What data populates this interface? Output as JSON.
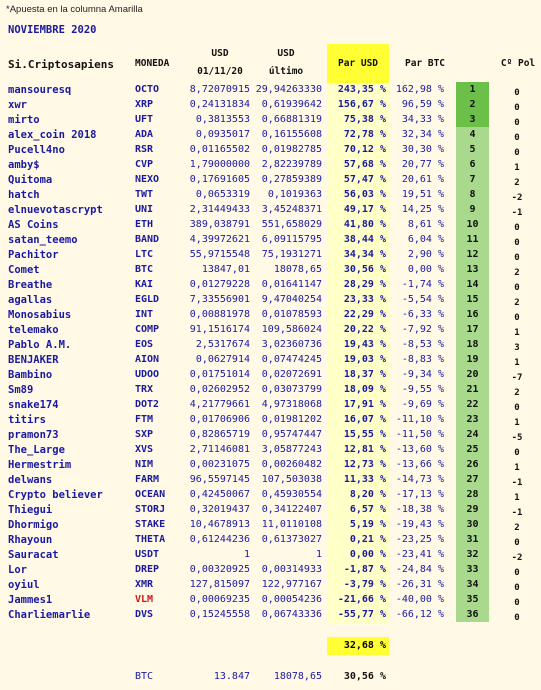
{
  "note": "*Apuesta en la columna Amarilla",
  "date": "NOVIEMBRE 2020",
  "headers": {
    "name": "Si.Criptosapiens",
    "coin": "MONEDA",
    "usd1_top": "USD",
    "usd1_bottom": "01/11/20",
    "usd2_top": "USD",
    "usd2_bottom": "último",
    "par_usd": "Par USD",
    "par_btc": "Par BTC",
    "pol": "Cº Pol"
  },
  "rows": [
    {
      "name": "mansouresq",
      "coin": "OCTO",
      "usd1": "8,72070915",
      "usd2": "29,94263330",
      "par": "243,35 %",
      "btc": "162,98 %",
      "rank": "1",
      "pol": "0"
    },
    {
      "name": "xwr",
      "coin": "XRP",
      "usd1": "0,24131834",
      "usd2": "0,61939642",
      "par": "156,67 %",
      "btc": "96,59 %",
      "rank": "2",
      "pol": "0"
    },
    {
      "name": "mirto",
      "coin": "UFT",
      "usd1": "0,3813553",
      "usd2": "0,66881319",
      "par": "75,38 %",
      "btc": "34,33 %",
      "rank": "3",
      "pol": "0"
    },
    {
      "name": "alex_coin 2018",
      "coin": "ADA",
      "usd1": "0,0935017",
      "usd2": "0,16155608",
      "par": "72,78 %",
      "btc": "32,34 %",
      "rank": "4",
      "pol": "0"
    },
    {
      "name": "Pucell4no",
      "coin": "RSR",
      "usd1": "0,01165502",
      "usd2": "0,01982785",
      "par": "70,12 %",
      "btc": "30,30 %",
      "rank": "5",
      "pol": "0"
    },
    {
      "name": "amby$",
      "coin": "CVP",
      "usd1": "1,79000000",
      "usd2": "2,82239789",
      "par": "57,68 %",
      "btc": "20,77 %",
      "rank": "6",
      "pol": "1"
    },
    {
      "name": "Quitoma",
      "coin": "NEXO",
      "usd1": "0,17691605",
      "usd2": "0,27859389",
      "par": "57,47 %",
      "btc": "20,61 %",
      "rank": "7",
      "pol": "2"
    },
    {
      "name": "hatch",
      "coin": "TWT",
      "usd1": "0,0653319",
      "usd2": "0,1019363",
      "par": "56,03 %",
      "btc": "19,51 %",
      "rank": "8",
      "pol": "-2"
    },
    {
      "name": "elnuevotascrypt",
      "coin": "UNI",
      "usd1": "2,31449433",
      "usd2": "3,45248371",
      "par": "49,17 %",
      "btc": "14,25 %",
      "rank": "9",
      "pol": "-1"
    },
    {
      "name": "AS Coins",
      "coin": "ETH",
      "usd1": "389,038791",
      "usd2": "551,658029",
      "par": "41,80 %",
      "btc": "8,61 %",
      "rank": "10",
      "pol": "0"
    },
    {
      "name": "satan_teemo",
      "coin": "BAND",
      "usd1": "4,39972621",
      "usd2": "6,09115795",
      "par": "38,44 %",
      "btc": "6,04 %",
      "rank": "11",
      "pol": "0"
    },
    {
      "name": "Pachitor",
      "coin": "LTC",
      "usd1": "55,9715548",
      "usd2": "75,1931271",
      "par": "34,34 %",
      "btc": "2,90 %",
      "rank": "12",
      "pol": "0"
    },
    {
      "name": "Comet",
      "coin": "BTC",
      "usd1": "13847,01",
      "usd2": "18078,65",
      "par": "30,56 %",
      "btc": "0,00 %",
      "rank": "13",
      "pol": "2"
    },
    {
      "name": "Breathe",
      "coin": "KAI",
      "usd1": "0,01279228",
      "usd2": "0,01641147",
      "par": "28,29 %",
      "btc": "-1,74 %",
      "rank": "14",
      "pol": "0"
    },
    {
      "name": "agallas",
      "coin": "EGLD",
      "usd1": "7,33556901",
      "usd2": "9,47040254",
      "par": "23,33 %",
      "btc": "-5,54 %",
      "rank": "15",
      "pol": "2"
    },
    {
      "name": "Monosabius",
      "coin": "INT",
      "usd1": "0,00881978",
      "usd2": "0,01078593",
      "par": "22,29 %",
      "btc": "-6,33 %",
      "rank": "16",
      "pol": "0"
    },
    {
      "name": "telemako",
      "coin": "COMP",
      "usd1": "91,1516174",
      "usd2": "109,586024",
      "par": "20,22 %",
      "btc": "-7,92 %",
      "rank": "17",
      "pol": "1"
    },
    {
      "name": "Pablo A.M.",
      "coin": "EOS",
      "usd1": "2,5317674",
      "usd2": "3,02360736",
      "par": "19,43 %",
      "btc": "-8,53 %",
      "rank": "18",
      "pol": "3"
    },
    {
      "name": "BENJAKER",
      "coin": "AION",
      "usd1": "0,0627914",
      "usd2": "0,07474245",
      "par": "19,03 %",
      "btc": "-8,83 %",
      "rank": "19",
      "pol": "1"
    },
    {
      "name": "Bambino",
      "coin": "UDOO",
      "usd1": "0,01751014",
      "usd2": "0,02072691",
      "par": "18,37 %",
      "btc": "-9,34 %",
      "rank": "20",
      "pol": "-7"
    },
    {
      "name": "Sm89",
      "coin": "TRX",
      "usd1": "0,02602952",
      "usd2": "0,03073799",
      "par": "18,09 %",
      "btc": "-9,55 %",
      "rank": "21",
      "pol": "2"
    },
    {
      "name": "snake174",
      "coin": "DOT2",
      "usd1": "4,21779661",
      "usd2": "4,97318068",
      "par": "17,91 %",
      "btc": "-9,69 %",
      "rank": "22",
      "pol": "0"
    },
    {
      "name": "titirs",
      "coin": "FTM",
      "usd1": "0,01706906",
      "usd2": "0,01981202",
      "par": "16,07 %",
      "btc": "-11,10 %",
      "rank": "23",
      "pol": "1"
    },
    {
      "name": "pramon73",
      "coin": "SXP",
      "usd1": "0,82865719",
      "usd2": "0,95747447",
      "par": "15,55 %",
      "btc": "-11,50 %",
      "rank": "24",
      "pol": "-5"
    },
    {
      "name": "The_Large",
      "coin": "XVS",
      "usd1": "2,71146081",
      "usd2": "3,05877243",
      "par": "12,81 %",
      "btc": "-13,60 %",
      "rank": "25",
      "pol": "0"
    },
    {
      "name": "Hermestrim",
      "coin": "NIM",
      "usd1": "0,00231075",
      "usd2": "0,00260482",
      "par": "12,73 %",
      "btc": "-13,66 %",
      "rank": "26",
      "pol": "1"
    },
    {
      "name": "delwans",
      "coin": "FARM",
      "usd1": "96,5597145",
      "usd2": "107,503038",
      "par": "11,33 %",
      "btc": "-14,73 %",
      "rank": "27",
      "pol": "-1"
    },
    {
      "name": "Crypto believer",
      "coin": "OCEAN",
      "usd1": "0,42450067",
      "usd2": "0,45930554",
      "par": "8,20 %",
      "btc": "-17,13 %",
      "rank": "28",
      "pol": "1"
    },
    {
      "name": "Thiegui",
      "coin": "STORJ",
      "usd1": "0,32019437",
      "usd2": "0,34122407",
      "par": "6,57 %",
      "btc": "-18,38 %",
      "rank": "29",
      "pol": "-1"
    },
    {
      "name": "Dhormigo",
      "coin": "STAKE",
      "usd1": "10,4678913",
      "usd2": "11,0110108",
      "par": "5,19 %",
      "btc": "-19,43 %",
      "rank": "30",
      "pol": "2"
    },
    {
      "name": "Rhayoun",
      "coin": "THETA",
      "usd1": "0,61244236",
      "usd2": "0,61373027",
      "par": "0,21 %",
      "btc": "-23,25 %",
      "rank": "31",
      "pol": "0"
    },
    {
      "name": "Sauracat",
      "coin": "USDT",
      "usd1": "1",
      "usd2": "1",
      "par": "0,00 %",
      "btc": "-23,41 %",
      "rank": "32",
      "pol": "-2"
    },
    {
      "name": "Lor",
      "coin": "DREP",
      "usd1": "0,00320925",
      "usd2": "0,00314933",
      "par": "-1,87 %",
      "btc": "-24,84 %",
      "rank": "33",
      "pol": "0"
    },
    {
      "name": "oyiul",
      "coin": "XMR",
      "usd1": "127,815097",
      "usd2": "122,977167",
      "par": "-3,79 %",
      "btc": "-26,31 %",
      "rank": "34",
      "pol": "0"
    },
    {
      "name": "Jammes1",
      "coin": "VLM",
      "coin_color": "#d01818",
      "usd1": "0,00069235",
      "usd2": "0,00054236",
      "par": "-21,66 %",
      "btc": "-40,00 %",
      "rank": "35",
      "pol": "0"
    },
    {
      "name": "Charliemarlie",
      "coin": "DVS",
      "usd1": "0,15245558",
      "usd2": "0,06743336",
      "par": "-55,77 %",
      "btc": "-66,12 %",
      "rank": "36",
      "pol": "0"
    }
  ],
  "total_par": "32,68 %",
  "footer": {
    "coin": "BTC",
    "usd1": "13.847",
    "usd2": "18078,65",
    "par": "30,56 %"
  },
  "colors": {
    "par_header": "#ffff33",
    "par_body": "#ffffc8",
    "rank_top": "#6cc04a",
    "rank_body": "#a8d98c",
    "text": "#1a1aa0",
    "highlight_coin": "#d01818"
  }
}
